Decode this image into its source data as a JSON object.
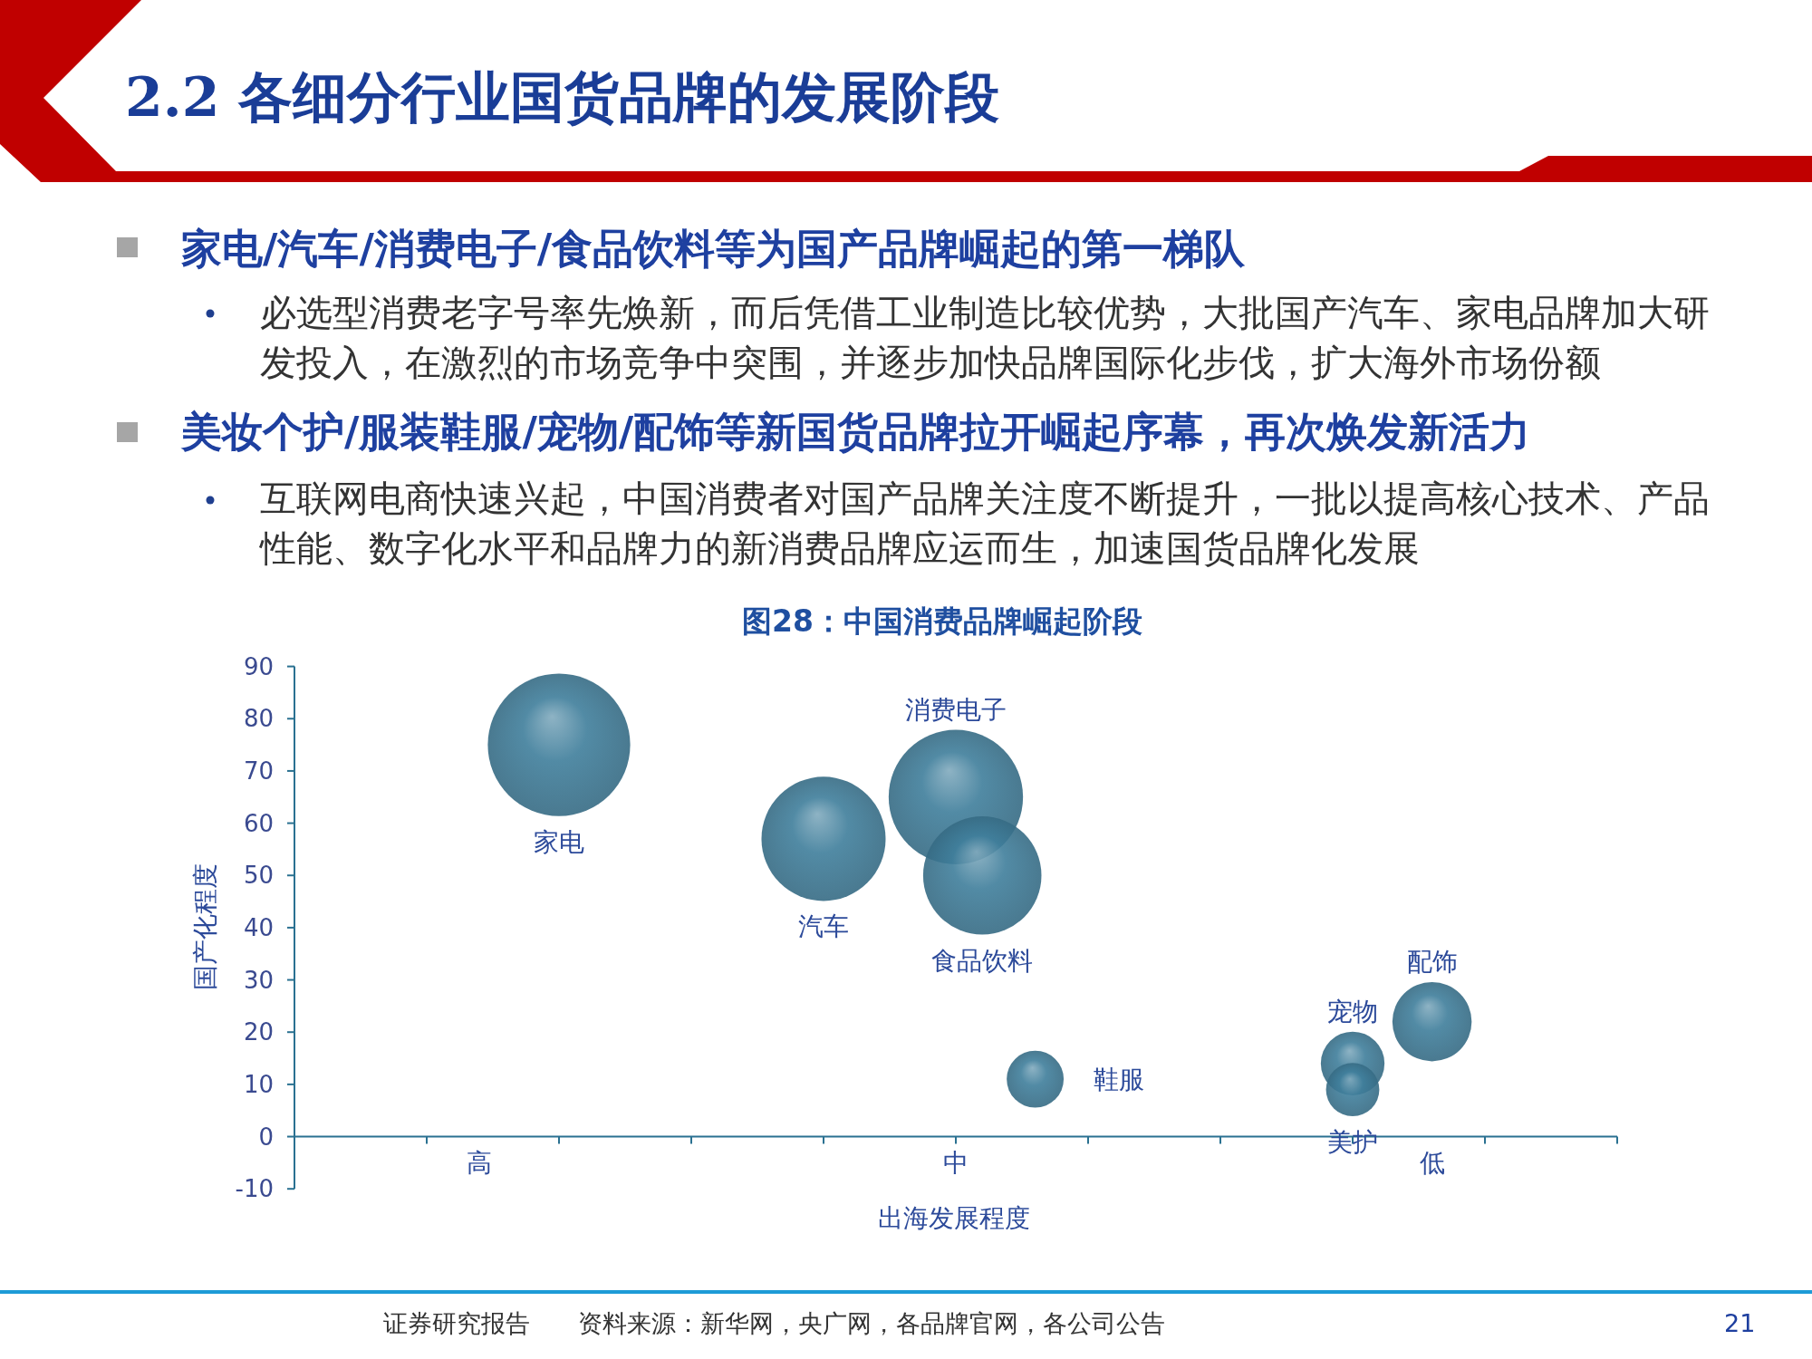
{
  "chart_data": {
    "type": "bubble",
    "title": "2.2 各细分行业国货品牌的发展阶段",
    "subtitle": "图28：中国消费品牌崛起阶段",
    "xlabel": "出海发展程度",
    "ylabel": "国产化程度",
    "categories": [
      null,
      null,
      null,
      null,
      null,
      null,
      null,
      "高",
      null,
      null,
      null,
      null,
      null,
      null,
      null,
      null,
      null,
      null,
      null,
      null,
      null,
      null,
      null,
      null,
      null,
      "中",
      null,
      null,
      null,
      null,
      null,
      null,
      null,
      null,
      null,
      null,
      null,
      null,
      null,
      null,
      null,
      null,
      null,
      "低",
      null,
      null,
      null,
      null,
      null,
      null,
      null
    ],
    "ylim": [
      -10,
      90
    ],
    "yticks": [
      -10,
      0,
      10,
      20,
      30,
      40,
      50,
      60,
      70,
      80,
      90
    ],
    "series": [
      {
        "name": "家电",
        "color": "#3f7e9b",
        "values": [
          null,
          null,
          null,
          null,
          null,
          null,
          null,
          null,
          null,
          null,
          75,
          null,
          null,
          null,
          null,
          null,
          null,
          null,
          null,
          null,
          null,
          null,
          null,
          null,
          null,
          null,
          null,
          null,
          null,
          null,
          null,
          null,
          null,
          null,
          null,
          null,
          null,
          null,
          null,
          null,
          null,
          null,
          null,
          null,
          null,
          null,
          null,
          null,
          null,
          null,
          null
        ],
        "sizes": [
          null,
          null,
          null,
          null,
          null,
          null,
          null,
          null,
          null,
          null,
          1,
          null,
          null,
          null,
          null,
          null,
          null,
          null,
          null,
          null,
          null,
          null,
          null,
          null,
          null,
          null,
          null,
          null,
          null,
          null,
          null,
          null,
          null,
          null,
          null,
          null,
          null,
          null,
          null,
          null,
          null,
          null,
          null,
          null,
          null,
          null,
          null,
          null,
          null,
          null,
          null
        ]
      },
      {
        "name": "汽车",
        "color": "#3f7e9b",
        "values": [
          null,
          null,
          null,
          null,
          null,
          null,
          null,
          null,
          null,
          null,
          null,
          null,
          null,
          null,
          null,
          null,
          null,
          null,
          null,
          null,
          57,
          null,
          null,
          null,
          null,
          null,
          null,
          null,
          null,
          null,
          null,
          null,
          null,
          null,
          null,
          null,
          null,
          null,
          null,
          null,
          null,
          null,
          null,
          null,
          null,
          null,
          null,
          null,
          null,
          null,
          null
        ],
        "sizes": [
          null,
          null,
          null,
          null,
          null,
          null,
          null,
          null,
          null,
          null,
          null,
          null,
          null,
          null,
          null,
          null,
          null,
          null,
          null,
          null,
          0.76,
          null,
          null,
          null,
          null,
          null,
          null,
          null,
          null,
          null,
          null,
          null,
          null,
          null,
          null,
          null,
          null,
          null,
          null,
          null,
          null,
          null,
          null,
          null,
          null,
          null,
          null,
          null,
          null,
          null,
          null
        ]
      },
      {
        "name": "消费电子",
        "color": "#3f7e9b",
        "values": [
          null,
          null,
          null,
          null,
          null,
          null,
          null,
          null,
          null,
          null,
          null,
          null,
          null,
          null,
          null,
          null,
          null,
          null,
          null,
          null,
          null,
          null,
          null,
          null,
          null,
          65,
          null,
          null,
          null,
          null,
          null,
          null,
          null,
          null,
          null,
          null,
          null,
          null,
          null,
          null,
          null,
          null,
          null,
          null,
          null,
          null,
          null,
          null,
          null,
          null,
          null
        ],
        "sizes": [
          null,
          null,
          null,
          null,
          null,
          null,
          null,
          null,
          null,
          null,
          null,
          null,
          null,
          null,
          null,
          null,
          null,
          null,
          null,
          null,
          null,
          null,
          null,
          null,
          null,
          0.89,
          null,
          null,
          null,
          null,
          null,
          null,
          null,
          null,
          null,
          null,
          null,
          null,
          null,
          null,
          null,
          null,
          null,
          null,
          null,
          null,
          null,
          null,
          null,
          null,
          null
        ]
      },
      {
        "name": "食品饮料",
        "color": "#3f7e9b",
        "values": [
          null,
          null,
          null,
          null,
          null,
          null,
          null,
          null,
          null,
          null,
          null,
          null,
          null,
          null,
          null,
          null,
          null,
          null,
          null,
          null,
          null,
          null,
          null,
          null,
          null,
          null,
          50,
          null,
          null,
          null,
          null,
          null,
          null,
          null,
          null,
          null,
          null,
          null,
          null,
          null,
          null,
          null,
          null,
          null,
          null,
          null,
          null,
          null,
          null,
          null,
          null
        ],
        "sizes": [
          null,
          null,
          null,
          null,
          null,
          null,
          null,
          null,
          null,
          null,
          null,
          null,
          null,
          null,
          null,
          null,
          null,
          null,
          null,
          null,
          null,
          null,
          null,
          null,
          null,
          null,
          0.69,
          null,
          null,
          null,
          null,
          null,
          null,
          null,
          null,
          null,
          null,
          null,
          null,
          null,
          null,
          null,
          null,
          null,
          null,
          null,
          null,
          null,
          null,
          null,
          null
        ]
      },
      {
        "name": "鞋服",
        "color": "#3f7e9b",
        "values": [
          null,
          null,
          null,
          null,
          null,
          null,
          null,
          null,
          null,
          null,
          null,
          null,
          null,
          null,
          null,
          null,
          null,
          null,
          null,
          null,
          null,
          null,
          null,
          null,
          null,
          null,
          null,
          null,
          11,
          null,
          null,
          null,
          null,
          null,
          null,
          null,
          null,
          null,
          null,
          null,
          null,
          null,
          null,
          null,
          null,
          null,
          null,
          null,
          null,
          null,
          null
        ],
        "sizes": [
          null,
          null,
          null,
          null,
          null,
          null,
          null,
          null,
          null,
          null,
          null,
          null,
          null,
          null,
          null,
          null,
          null,
          null,
          null,
          null,
          null,
          null,
          null,
          null,
          null,
          null,
          null,
          null,
          0.16,
          null,
          null,
          null,
          null,
          null,
          null,
          null,
          null,
          null,
          null,
          null,
          null,
          null,
          null,
          null,
          null,
          null,
          null,
          null,
          null,
          null,
          null
        ]
      },
      {
        "name": "宠物",
        "color": "#3f7e9b",
        "values": [
          null,
          null,
          null,
          null,
          null,
          null,
          null,
          null,
          null,
          null,
          null,
          null,
          null,
          null,
          null,
          null,
          null,
          null,
          null,
          null,
          null,
          null,
          null,
          null,
          null,
          null,
          null,
          null,
          null,
          null,
          null,
          null,
          null,
          null,
          null,
          null,
          null,
          null,
          null,
          null,
          14,
          null,
          null,
          null,
          null,
          null,
          null,
          null,
          null,
          null,
          null
        ],
        "sizes": [
          null,
          null,
          null,
          null,
          null,
          null,
          null,
          null,
          null,
          null,
          null,
          null,
          null,
          null,
          null,
          null,
          null,
          null,
          null,
          null,
          null,
          null,
          null,
          null,
          null,
          null,
          null,
          null,
          null,
          null,
          null,
          null,
          null,
          null,
          null,
          null,
          null,
          null,
          null,
          null,
          0.2,
          null,
          null,
          null,
          null,
          null,
          null,
          null,
          null,
          null,
          null
        ]
      },
      {
        "name": "美护",
        "color": "#3f7e9b",
        "values": [
          null,
          null,
          null,
          null,
          null,
          null,
          null,
          null,
          null,
          null,
          null,
          null,
          null,
          null,
          null,
          null,
          null,
          null,
          null,
          null,
          null,
          null,
          null,
          null,
          null,
          null,
          null,
          null,
          null,
          null,
          null,
          null,
          null,
          null,
          null,
          null,
          null,
          null,
          null,
          null,
          9,
          null,
          null,
          null,
          null,
          null,
          null,
          null,
          null,
          null,
          null
        ],
        "sizes": [
          null,
          null,
          null,
          null,
          null,
          null,
          null,
          null,
          null,
          null,
          null,
          null,
          null,
          null,
          null,
          null,
          null,
          null,
          null,
          null,
          null,
          null,
          null,
          null,
          null,
          null,
          null,
          null,
          null,
          null,
          null,
          null,
          null,
          null,
          null,
          null,
          null,
          null,
          null,
          null,
          0.14,
          null,
          null,
          null,
          null,
          null,
          null,
          null,
          null,
          null,
          null
        ]
      },
      {
        "name": "配饰",
        "color": "#3f7e9b",
        "values": [
          null,
          null,
          null,
          null,
          null,
          null,
          null,
          null,
          null,
          null,
          null,
          null,
          null,
          null,
          null,
          null,
          null,
          null,
          null,
          null,
          null,
          null,
          null,
          null,
          null,
          null,
          null,
          null,
          null,
          null,
          null,
          null,
          null,
          null,
          null,
          null,
          null,
          null,
          null,
          null,
          null,
          null,
          null,
          22,
          null,
          null,
          null,
          null,
          null,
          null,
          null
        ],
        "sizes": [
          null,
          null,
          null,
          null,
          null,
          null,
          null,
          null,
          null,
          null,
          null,
          null,
          null,
          null,
          null,
          null,
          null,
          null,
          null,
          null,
          null,
          null,
          null,
          null,
          null,
          null,
          null,
          null,
          null,
          null,
          null,
          null,
          null,
          null,
          null,
          null,
          null,
          null,
          null,
          null,
          null,
          null,
          null,
          0.31,
          null,
          null,
          null,
          null,
          null,
          null,
          null
        ]
      }
    ],
    "annotations": [
      "家电/汽车/消费电子/食品饮料等为国产品牌崛起的第一梯队",
      "必选型消费老字号率先焕新，而后凭借工业制造比较优势，大批国产汽车、家电品牌加大研发投入，在激烈的市场竞争中突围，并逐步加快品牌国际化步伐，扩大海外市场份额",
      "美妆个护/服装鞋服/宠物/配饰等新国货品牌拉开崛起序幕，再次焕发新活力",
      "互联网电商快速兴起，中国消费者对国产品牌关注度不断提升，一批以提高核心技术、产品性能、数字化水平和品牌力的新消费品牌应运而生，加速国货品牌化发展",
      "证券研究报告",
      "资料来源：新华网，央广网，各品牌官网，各公司公告",
      "21"
    ]
  }
}
